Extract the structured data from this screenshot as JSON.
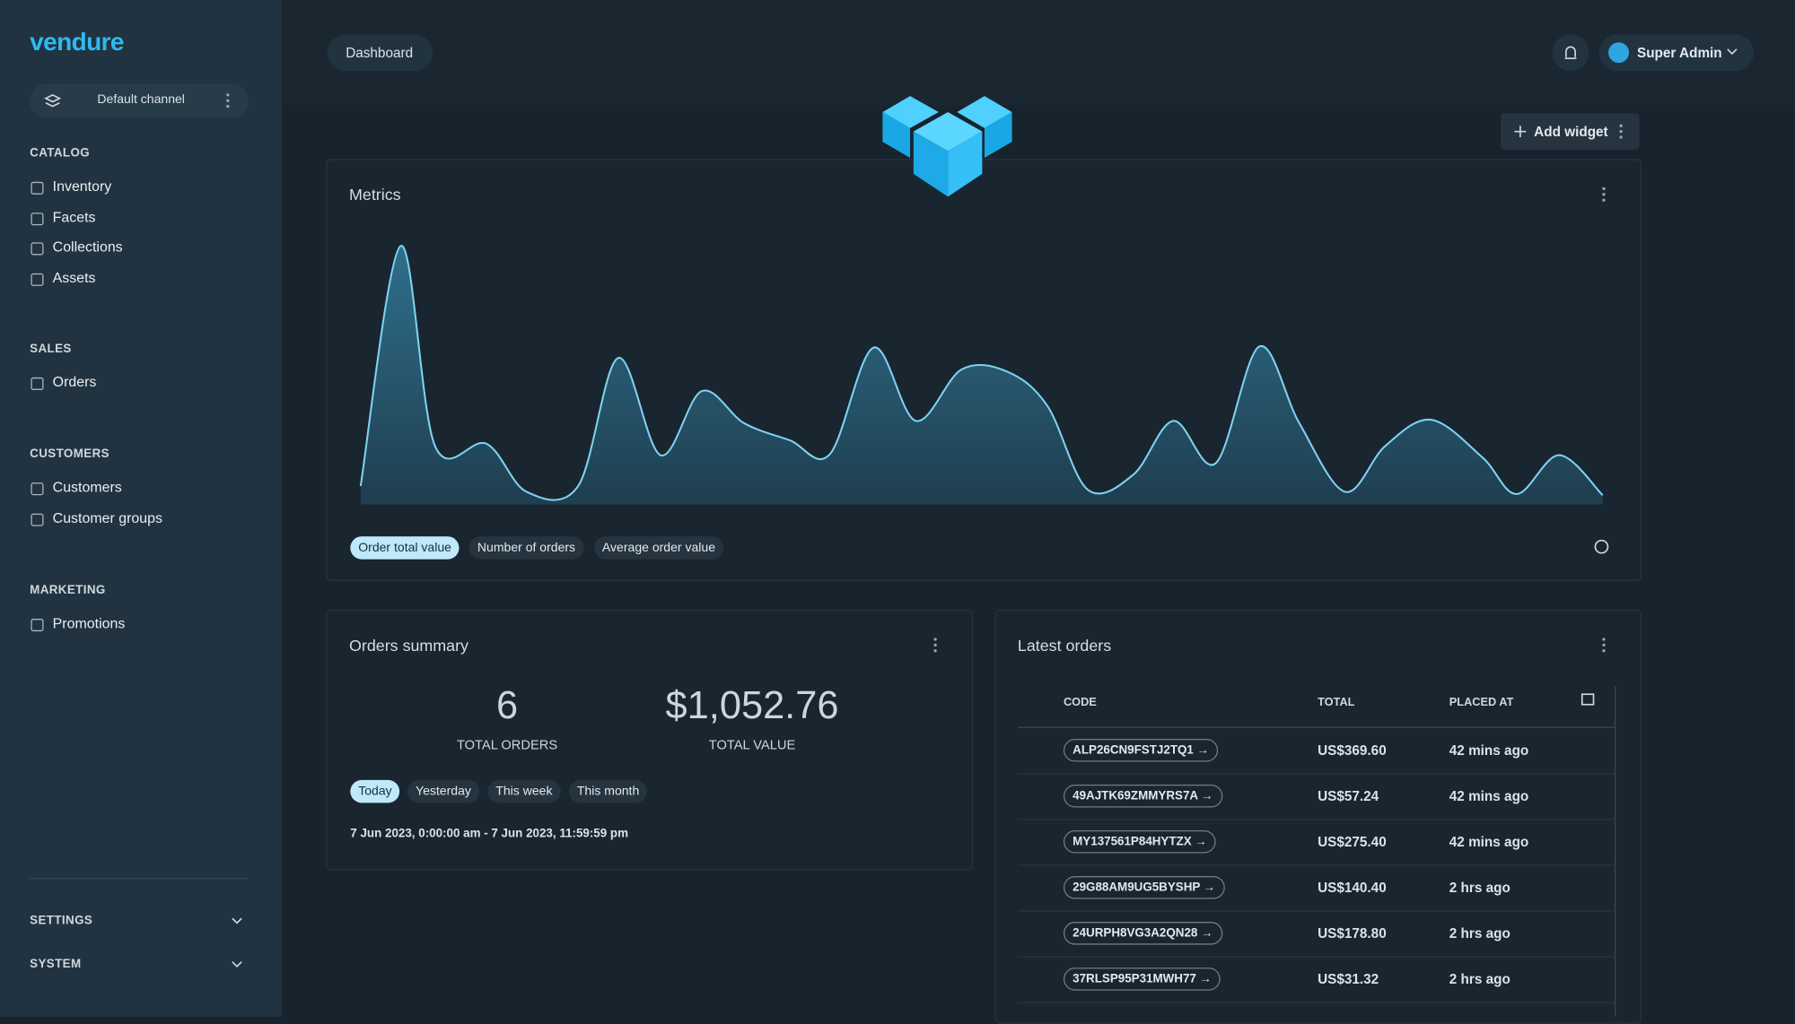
{
  "sidebar": {
    "brand": "vendure",
    "channel": "Default channel",
    "sections": [
      {
        "title": "CATALOG",
        "items": [
          "Inventory",
          "Facets",
          "Collections",
          "Assets"
        ]
      },
      {
        "title": "SALES",
        "items": [
          "Orders"
        ]
      },
      {
        "title": "CUSTOMERS",
        "items": [
          "Customers",
          "Customer groups"
        ]
      },
      {
        "title": "MARKETING",
        "items": [
          "Promotions"
        ]
      }
    ],
    "footer": [
      "SETTINGS",
      "SYSTEM"
    ]
  },
  "header": {
    "breadcrumb": "Dashboard",
    "user": "Super Admin"
  },
  "toolbar": {
    "add_widget": "Add widget"
  },
  "metrics": {
    "title": "Metrics",
    "tabs": [
      "Order total value",
      "Number of orders",
      "Average order value"
    ]
  },
  "orders_summary": {
    "title": "Orders summary",
    "total_orders": 6,
    "total_orders_label": "TOTAL ORDERS",
    "total_value": "$1,052.76",
    "total_value_label": "TOTAL VALUE",
    "tabs": [
      "Today",
      "Yesterday",
      "This week",
      "This month"
    ],
    "range": "7 Jun 2023, 0:00:00 am - 7 Jun 2023, 11:59:59 pm"
  },
  "latest_orders": {
    "title": "Latest orders",
    "columns": [
      "CODE",
      "TOTAL",
      "PLACED AT"
    ],
    "rows": [
      [
        "ALP26CN9FSTJ2TQ1",
        "US$369.60",
        "42 mins ago"
      ],
      [
        "49AJTK69ZMMYRS7A",
        "US$57.24",
        "42 mins ago"
      ],
      [
        "MY137561P84HYTZX",
        "US$275.40",
        "42 mins ago"
      ],
      [
        "29G88AM9UG5BYSHP",
        "US$140.40",
        "2 hrs ago"
      ],
      [
        "24URPH8VG3A2QN28",
        "US$178.80",
        "2 hrs ago"
      ],
      [
        "37RLSP95P31MWH77",
        "US$31.32",
        "2 hrs ago"
      ]
    ]
  }
}
